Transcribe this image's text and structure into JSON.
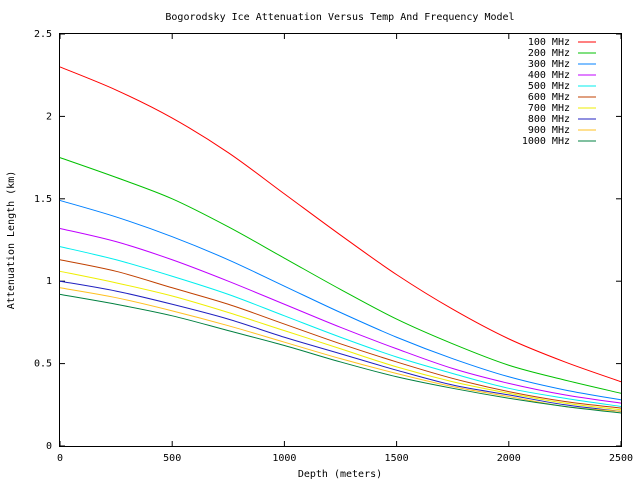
{
  "chart_data": {
    "type": "line",
    "title": "Bogorodsky Ice Attenuation Versus Temp And Frequency Model",
    "xlabel": "Depth (meters)",
    "ylabel": "Attenuation Length (km)",
    "xlim": [
      0,
      2500
    ],
    "ylim": [
      0,
      2.5
    ],
    "xticks": [
      0,
      500,
      1000,
      1500,
      2000,
      2500
    ],
    "xtick_labels": [
      "0",
      "500",
      "1000",
      "1500",
      "2000",
      "2500"
    ],
    "yticks": [
      0,
      0.5,
      1,
      1.5,
      2,
      2.5
    ],
    "ytick_labels": [
      "0",
      "0.5",
      "1",
      "1.5",
      "2",
      "2.5"
    ],
    "grid": false,
    "legend_position": "top-right",
    "x": [
      0,
      250,
      500,
      750,
      1000,
      1250,
      1500,
      1750,
      2000,
      2250,
      2500
    ],
    "series": [
      {
        "name": "100 MHz",
        "color": "#ff0000",
        "values": [
          2.3,
          2.16,
          1.99,
          1.78,
          1.53,
          1.28,
          1.04,
          0.83,
          0.65,
          0.51,
          0.39
        ]
      },
      {
        "name": "200 MHz",
        "color": "#00c000",
        "values": [
          1.75,
          1.63,
          1.5,
          1.33,
          1.14,
          0.95,
          0.77,
          0.62,
          0.49,
          0.4,
          0.32
        ]
      },
      {
        "name": "300 MHz",
        "color": "#0080ff",
        "values": [
          1.49,
          1.39,
          1.27,
          1.13,
          0.97,
          0.81,
          0.66,
          0.53,
          0.42,
          0.34,
          0.28
        ]
      },
      {
        "name": "400 MHz",
        "color": "#c000ff",
        "values": [
          1.32,
          1.24,
          1.13,
          1.0,
          0.86,
          0.72,
          0.59,
          0.47,
          0.38,
          0.31,
          0.26
        ]
      },
      {
        "name": "500 MHz",
        "color": "#00eeee",
        "values": [
          1.21,
          1.13,
          1.03,
          0.92,
          0.79,
          0.66,
          0.54,
          0.44,
          0.35,
          0.29,
          0.24
        ]
      },
      {
        "name": "600 MHz",
        "color": "#c04000",
        "values": [
          1.13,
          1.06,
          0.96,
          0.86,
          0.74,
          0.62,
          0.51,
          0.41,
          0.33,
          0.27,
          0.23
        ]
      },
      {
        "name": "700 MHz",
        "color": "#eeee00",
        "values": [
          1.06,
          0.99,
          0.91,
          0.81,
          0.7,
          0.59,
          0.48,
          0.39,
          0.32,
          0.26,
          0.22
        ]
      },
      {
        "name": "800 MHz",
        "color": "#2020c0",
        "values": [
          1.0,
          0.94,
          0.86,
          0.77,
          0.66,
          0.56,
          0.46,
          0.37,
          0.31,
          0.25,
          0.21
        ]
      },
      {
        "name": "900 MHz",
        "color": "#ffc020",
        "values": [
          0.96,
          0.9,
          0.82,
          0.73,
          0.63,
          0.53,
          0.44,
          0.36,
          0.3,
          0.24,
          0.21
        ]
      },
      {
        "name": "1000 MHz",
        "color": "#008040",
        "values": [
          0.92,
          0.86,
          0.79,
          0.7,
          0.61,
          0.51,
          0.42,
          0.35,
          0.29,
          0.24,
          0.2
        ]
      }
    ]
  }
}
